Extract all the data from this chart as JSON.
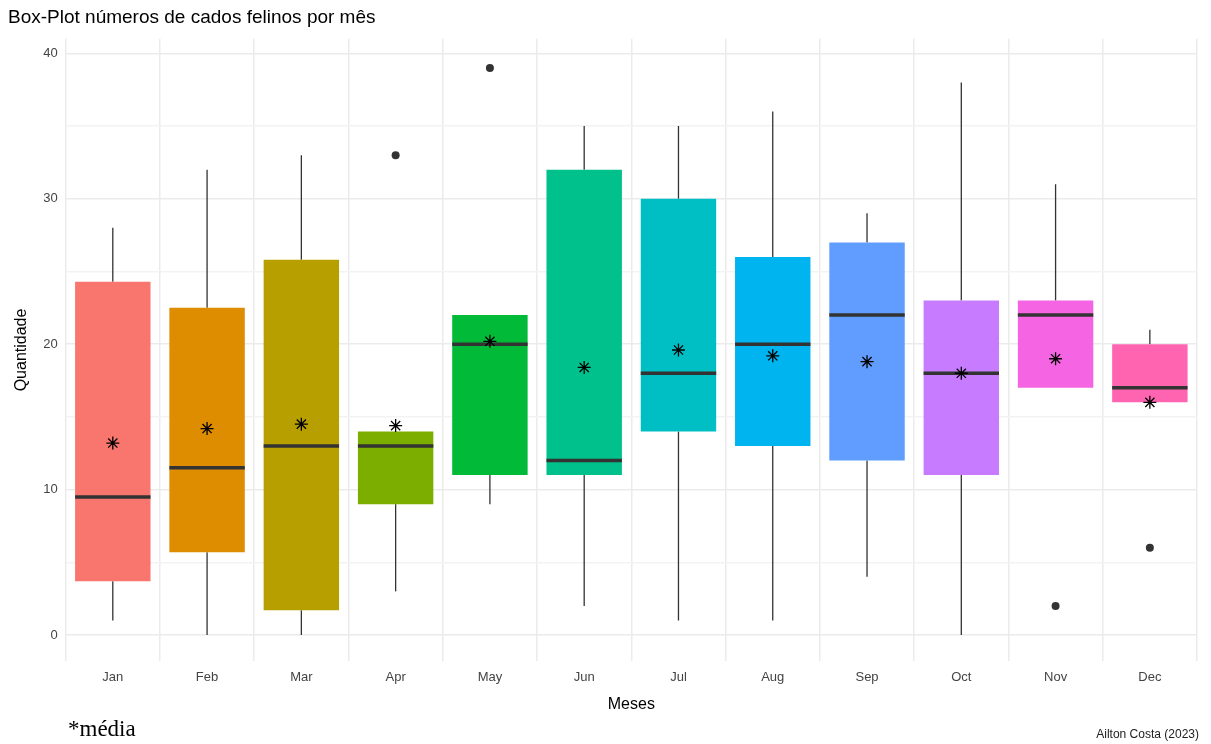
{
  "chart_data": {
    "type": "box",
    "title": "Box-Plot números de cados felinos por mês",
    "xlabel": "Meses",
    "ylabel": "Quantidade",
    "categories": [
      "Jan",
      "Feb",
      "Mar",
      "Apr",
      "May",
      "Jun",
      "Jul",
      "Aug",
      "Sep",
      "Oct",
      "Nov",
      "Dec"
    ],
    "colors": [
      "#f8766d",
      "#de8c00",
      "#b79f00",
      "#7cae00",
      "#00ba38",
      "#00c08b",
      "#00bfc4",
      "#00b4f0",
      "#619cff",
      "#c77cff",
      "#f564e3",
      "#ff64b0"
    ],
    "boxes": [
      {
        "low": 1,
        "q1": 3.7,
        "median": 9.5,
        "q3": 24.3,
        "high": 28,
        "mean": 13.2
      },
      {
        "low": 0,
        "q1": 5.7,
        "median": 11.5,
        "q3": 22.5,
        "high": 32,
        "mean": 14.2
      },
      {
        "low": 0,
        "q1": 1.7,
        "median": 13,
        "q3": 25.8,
        "high": 33,
        "mean": 14.5
      },
      {
        "low": 3,
        "q1": 9,
        "median": 13,
        "q3": 14,
        "high": 14,
        "mean": 14.4,
        "outliers": [
          33
        ]
      },
      {
        "low": 9,
        "q1": 11,
        "median": 20,
        "q3": 22,
        "high": 22,
        "mean": 20.2,
        "outliers": [
          39
        ]
      },
      {
        "low": 2,
        "q1": 11,
        "median": 12,
        "q3": 32,
        "high": 35,
        "mean": 18.4
      },
      {
        "low": 1,
        "q1": 14,
        "median": 18,
        "q3": 30,
        "high": 35,
        "mean": 19.6
      },
      {
        "low": 1,
        "q1": 13,
        "median": 20,
        "q3": 26,
        "high": 36,
        "mean": 19.2
      },
      {
        "low": 4,
        "q1": 12,
        "median": 22,
        "q3": 27,
        "high": 29,
        "mean": 18.8
      },
      {
        "low": 0,
        "q1": 11,
        "median": 18,
        "q3": 23,
        "high": 38,
        "mean": 18
      },
      {
        "low": 17,
        "q1": 17,
        "median": 22,
        "q3": 23,
        "high": 31,
        "mean": 19,
        "outliers": [
          2
        ]
      },
      {
        "low": 16,
        "q1": 16,
        "median": 17,
        "q3": 20,
        "high": 21,
        "mean": 16,
        "outliers": [
          6
        ]
      }
    ],
    "ylim": [
      -1.8,
      41
    ],
    "yticks": [
      0,
      {
        "value": 5,
        "label": null
      },
      10,
      {
        "value": 15,
        "label": null
      },
      20,
      {
        "value": 25,
        "label": null
      },
      30,
      {
        "value": 35,
        "label": null
      },
      40
    ],
    "grid": true,
    "legend": false,
    "annotations": [
      "*média",
      "Ailton Costa (2023)"
    ]
  }
}
